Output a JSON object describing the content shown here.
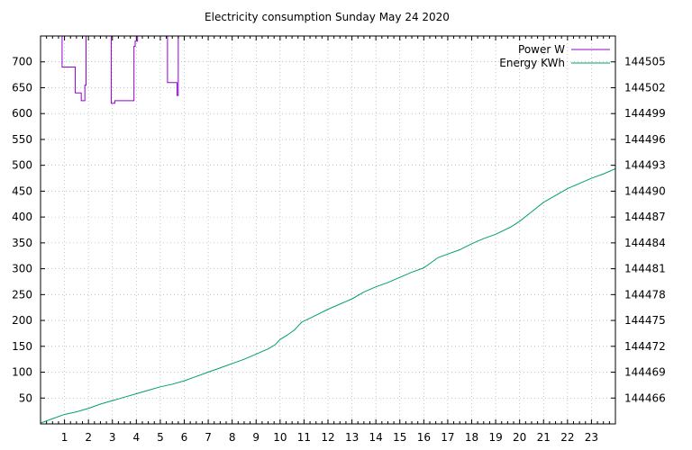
{
  "chart_data": {
    "type": "line",
    "title": "Electricity consumption Sunday May 24 2020",
    "xlim": [
      0,
      24
    ],
    "ylim_left": [
      0,
      750
    ],
    "ylim_right": [
      144463,
      144508
    ],
    "x_ticks": [
      1,
      2,
      3,
      4,
      5,
      6,
      7,
      8,
      9,
      10,
      11,
      12,
      13,
      14,
      15,
      16,
      17,
      18,
      19,
      20,
      21,
      22,
      23
    ],
    "y_ticks_left": [
      50,
      100,
      150,
      200,
      250,
      300,
      350,
      400,
      450,
      500,
      550,
      600,
      650,
      700
    ],
    "y_ticks_right": [
      144466,
      144469,
      144472,
      144475,
      144478,
      144481,
      144484,
      144487,
      144490,
      144493,
      144496,
      144499,
      144502,
      144505
    ],
    "grid": true,
    "legend_position": "top-right",
    "series": [
      {
        "name": "Power W",
        "axis": "left",
        "color": "#9400d3",
        "x": [
          0.9,
          0.9,
          1.45,
          1.45,
          1.7,
          1.7,
          1.85,
          1.85,
          1.9,
          1.9,
          1.95,
          1.95,
          2.95,
          2.95,
          3.1,
          3.1,
          3.9,
          3.9,
          3.95,
          3.95,
          4.05,
          4.05,
          5.3,
          5.3,
          5.7,
          5.7,
          5.75,
          5.75
        ],
        "y": [
          750,
          690,
          690,
          640,
          640,
          625,
          625,
          655,
          655,
          750,
          750,
          750,
          750,
          620,
          620,
          625,
          625,
          730,
          730,
          740,
          740,
          750,
          750,
          660,
          660,
          635,
          635,
          750
        ]
      },
      {
        "name": "Energy KWh",
        "axis": "right",
        "color": "#009e73",
        "x": [
          0,
          0.5,
          1,
          1.5,
          2,
          2.5,
          3,
          3.5,
          4,
          4.5,
          5,
          5.5,
          6,
          6.5,
          7,
          7.5,
          8,
          8.5,
          9,
          9.5,
          9.8,
          10,
          10.3,
          10.6,
          10.9,
          11.2,
          11.5,
          12,
          12.5,
          13,
          13.5,
          14,
          14.5,
          15,
          15.5,
          16,
          16.3,
          16.6,
          17,
          17.5,
          18,
          18.5,
          19,
          19.6,
          20,
          20.5,
          21,
          21.5,
          22,
          22.5,
          23,
          23.5,
          24
        ],
        "y": [
          144463.1,
          144463.6,
          144464.1,
          144464.4,
          144464.8,
          144465.3,
          144465.7,
          144466.1,
          144466.5,
          144466.9,
          144467.3,
          144467.6,
          144468.0,
          144468.5,
          144469.0,
          144469.5,
          144470.0,
          144470.5,
          144471.1,
          144471.7,
          144472.2,
          144472.8,
          144473.3,
          144473.9,
          144474.8,
          144475.2,
          144475.6,
          144476.3,
          144476.9,
          144477.5,
          144478.3,
          144478.9,
          144479.4,
          144480.0,
          144480.6,
          144481.1,
          144481.7,
          144482.3,
          144482.7,
          144483.2,
          144483.9,
          144484.5,
          144485.0,
          144485.8,
          144486.5,
          144487.6,
          144488.7,
          144489.5,
          144490.3,
          144490.9,
          144491.5,
          144492.0,
          144492.6
        ]
      }
    ]
  }
}
